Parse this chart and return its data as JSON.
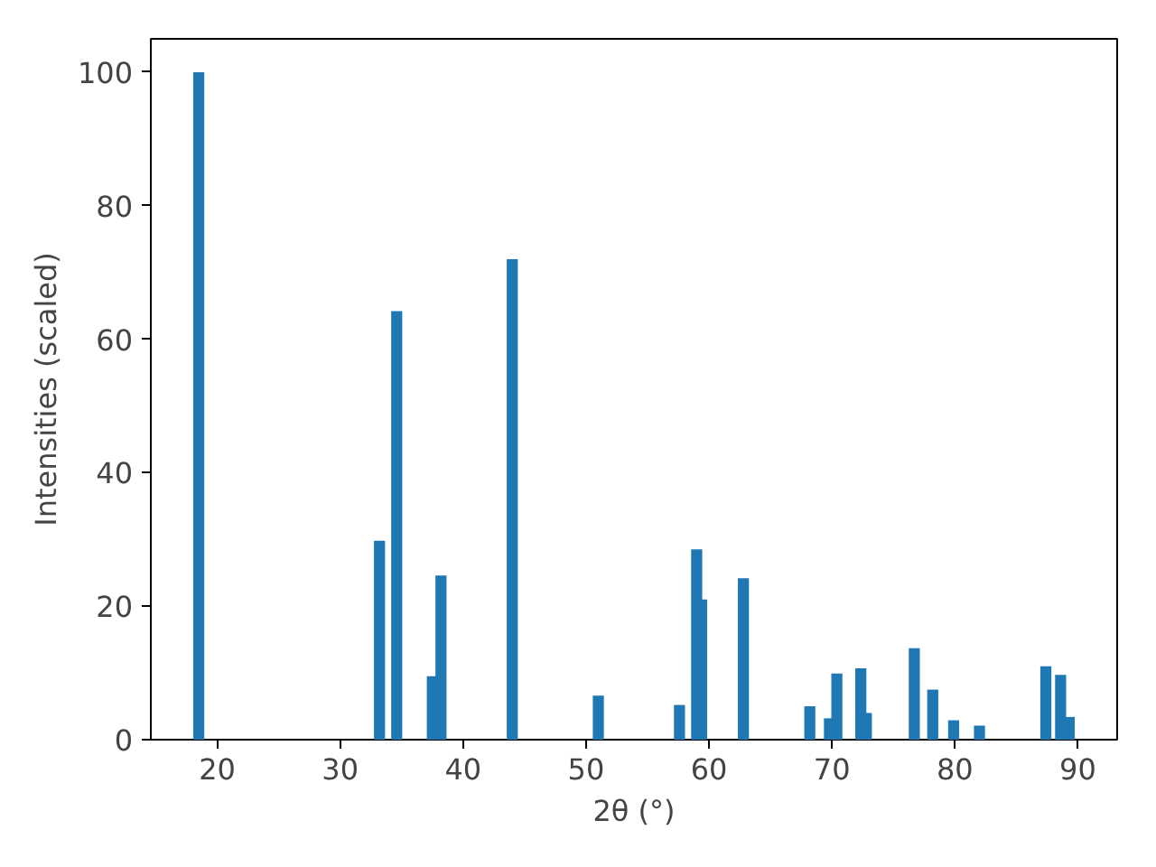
{
  "chart_data": {
    "type": "bar",
    "xlabel": "2θ (°)",
    "ylabel": "Intensities (scaled)",
    "x": [
      18.5,
      33.2,
      34.6,
      37.5,
      38.2,
      44.0,
      51.0,
      57.6,
      59.0,
      59.4,
      62.8,
      68.2,
      69.8,
      70.4,
      72.35,
      72.8,
      76.7,
      78.2,
      79.9,
      82.0,
      87.4,
      88.6,
      89.3
    ],
    "values": [
      100,
      29.8,
      64.2,
      9.5,
      24.6,
      72,
      6.6,
      5.2,
      28.5,
      21.0,
      24.2,
      5.0,
      3.2,
      9.9,
      10.7,
      4.0,
      13.7,
      7.5,
      2.9,
      2.1,
      11.0,
      9.7,
      3.4
    ],
    "color": "#1f77b4",
    "xlim": [
      14.6,
      93.2
    ],
    "xticks": [
      20,
      30,
      40,
      50,
      60,
      70,
      80,
      90
    ],
    "ylim": [
      0,
      105
    ],
    "yticks": [
      0,
      20,
      40,
      60,
      80,
      100
    ],
    "grid": false
  }
}
